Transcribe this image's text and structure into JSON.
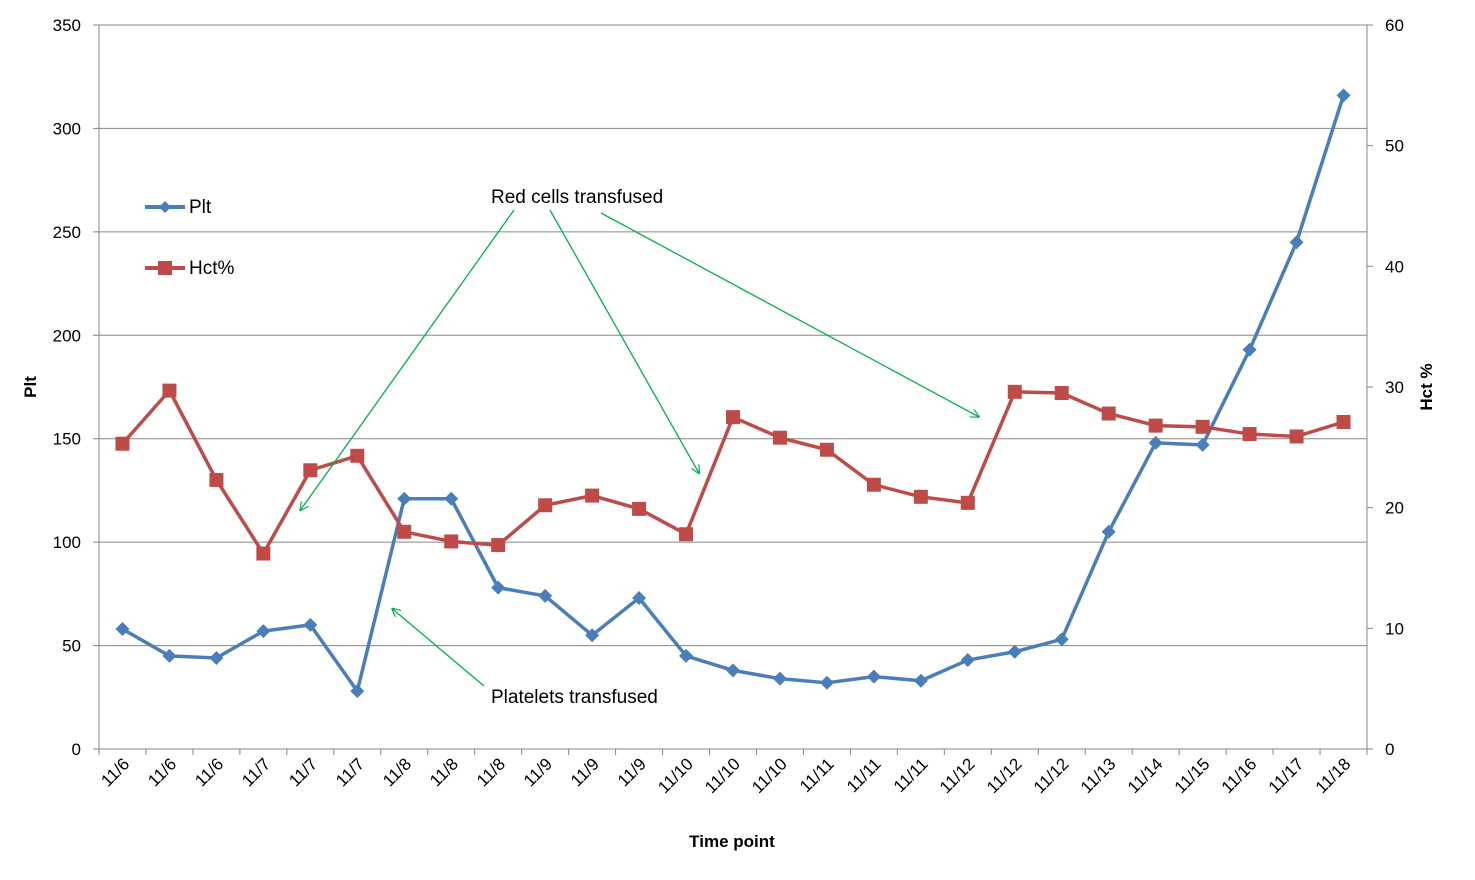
{
  "chart_data": {
    "type": "line",
    "title": "",
    "xlabel": "Time point",
    "ylabel": "Plt",
    "y2label": "Hct %",
    "x": [
      "11/6",
      "11/6",
      "11/6",
      "11/7",
      "11/7",
      "11/7",
      "11/8",
      "11/8",
      "11/8",
      "11/9",
      "11/9",
      "11/9",
      "11/10",
      "11/10",
      "11/10",
      "11/11",
      "11/11",
      "11/11",
      "11/12",
      "11/12",
      "11/12",
      "11/13",
      "11/14",
      "11/15",
      "11/16",
      "11/17",
      "11/18"
    ],
    "ylim": [
      0,
      350
    ],
    "y_ticks": [
      0,
      50,
      100,
      150,
      200,
      250,
      300,
      350
    ],
    "y2lim": [
      0,
      60
    ],
    "y2_ticks": [
      0,
      10,
      20,
      30,
      40,
      50,
      60
    ],
    "grid": true,
    "legend_position": "left",
    "series": [
      {
        "name": "Plt",
        "axis": "left",
        "color": "#4A7EBB",
        "marker": "diamond",
        "points": [
          {
            "i": 0,
            "y": 58
          },
          {
            "i": 1,
            "y": 45
          },
          {
            "i": 2,
            "y": 44
          },
          {
            "i": 3,
            "y": 57
          },
          {
            "i": 4,
            "y": 60
          },
          {
            "i": 5,
            "y": 28
          },
          {
            "i": 6,
            "y": 121
          },
          {
            "i": 7,
            "y": 121
          },
          {
            "i": 8,
            "y": 78
          },
          {
            "i": 9,
            "y": 74
          },
          {
            "i": 10,
            "y": 55
          },
          {
            "i": 11,
            "y": 73
          },
          {
            "i": 12,
            "y": 45
          },
          {
            "i": 13,
            "y": 38
          },
          {
            "i": 14,
            "y": 34
          },
          {
            "i": 15,
            "y": 32
          },
          {
            "i": 16,
            "y": 35
          },
          {
            "i": 17,
            "y": 33
          },
          {
            "i": 18,
            "y": 43
          },
          {
            "i": 19,
            "y": 47
          },
          {
            "i": 20,
            "y": 53
          },
          {
            "i": 21,
            "y": 105
          },
          {
            "i": 22,
            "y": 148
          },
          {
            "i": 23,
            "y": 147
          },
          {
            "i": 24,
            "y": 193
          },
          {
            "i": 25,
            "y": 245
          },
          {
            "i": 26,
            "y": 316
          }
        ]
      },
      {
        "name": "Hct%",
        "axis": "right",
        "color": "#BE4B48",
        "marker": "square",
        "points": [
          {
            "i": 0,
            "y": 25.3
          },
          {
            "i": 1,
            "y": 29.7
          },
          {
            "i": 2,
            "y": 22.3
          },
          {
            "i": 3,
            "y": 16.2
          },
          {
            "i": 4,
            "y": 23.1
          },
          {
            "i": 5,
            "y": 24.3
          },
          {
            "i": 6,
            "y": 18.0
          },
          {
            "i": 7,
            "y": 17.2
          },
          {
            "i": 8,
            "y": 16.9
          },
          {
            "i": 9,
            "y": 20.2
          },
          {
            "i": 10,
            "y": 21.0
          },
          {
            "i": 11,
            "y": 19.9
          },
          {
            "i": 12,
            "y": 17.8
          },
          {
            "i": 13,
            "y": 27.5
          },
          {
            "i": 14,
            "y": 25.8
          },
          {
            "i": 15,
            "y": 24.8
          },
          {
            "i": 16,
            "y": 21.9
          },
          {
            "i": 17,
            "y": 20.9
          },
          {
            "i": 18,
            "y": 20.4
          },
          {
            "i": 19,
            "y": 29.6
          },
          {
            "i": 20,
            "y": 29.5
          },
          {
            "i": 21,
            "y": 27.8
          },
          {
            "i": 22,
            "y": 26.8
          },
          {
            "i": 23,
            "y": 26.7
          },
          {
            "i": 24,
            "y": 26.1
          },
          {
            "i": 25,
            "y": 25.9
          },
          {
            "i": 26,
            "y": 27.1
          }
        ]
      }
    ],
    "annotations": [
      {
        "text": "Red cells transfused",
        "color": "#00B050",
        "arrow_targets": [
          4,
          13,
          19
        ]
      },
      {
        "text": "Platelets transfused",
        "color": "#00B050",
        "arrow_targets": [
          6
        ]
      }
    ]
  }
}
